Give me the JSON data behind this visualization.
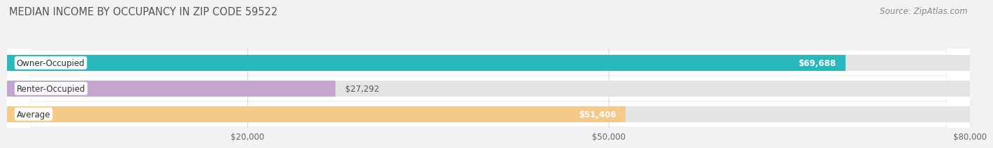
{
  "title": "MEDIAN INCOME BY OCCUPANCY IN ZIP CODE 59522",
  "source": "Source: ZipAtlas.com",
  "categories": [
    "Owner-Occupied",
    "Renter-Occupied",
    "Average"
  ],
  "values": [
    69688,
    27292,
    51406
  ],
  "bar_colors": [
    "#29b8bb",
    "#c4a5d0",
    "#f5c98a"
  ],
  "bar_labels": [
    "$69,688",
    "$27,292",
    "$51,406"
  ],
  "xlim": [
    0,
    80000
  ],
  "xticks": [
    20000,
    50000,
    80000
  ],
  "xtick_labels": [
    "$20,000",
    "$50,000",
    "$80,000"
  ],
  "background_color": "#f2f2f2",
  "bar_bg_color": "#e4e4e4",
  "row_bg_color": "#ffffff",
  "title_fontsize": 10.5,
  "source_fontsize": 8.5,
  "label_fontsize": 8.5,
  "tick_fontsize": 8.5,
  "value_label_inside_color": "#ffffff",
  "value_label_outside_color": "#555555"
}
